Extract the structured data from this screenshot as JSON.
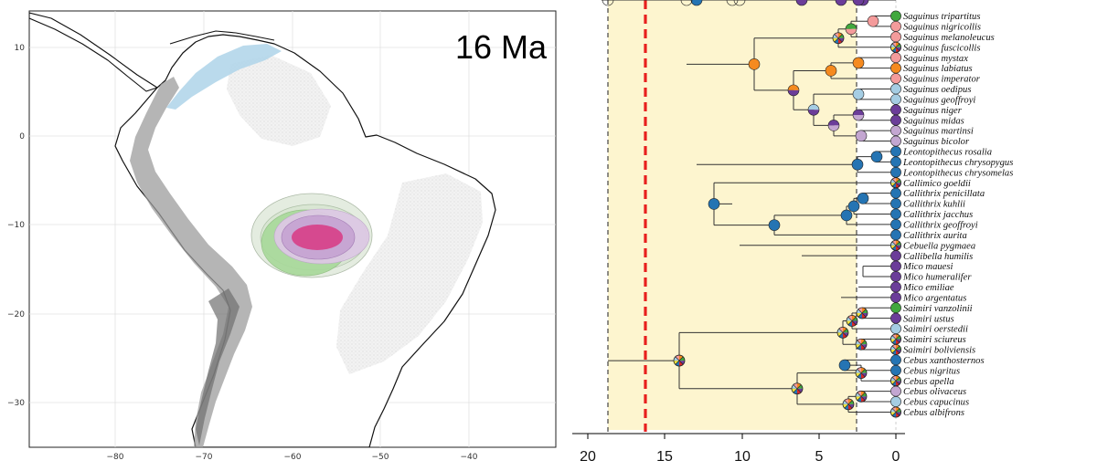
{
  "map": {
    "title": "16 Ma",
    "x_ticks": [
      "−80",
      "−70",
      "−60",
      "−50",
      "−40"
    ],
    "y_ticks": [
      "10",
      "0",
      "−10",
      "−20",
      "−30"
    ],
    "colors": {
      "land": "#ffffff",
      "coast": "#111111",
      "relief": "#9a9a9a",
      "shield": "#dadada",
      "caribbean": "#b3d6ea",
      "range_outer": "#e3ecdf",
      "range_green": "#a8d99a",
      "range_purple": "#c7a6d3",
      "range_core": "#d6498f"
    }
  },
  "tree": {
    "axis_ticks": [
      "20",
      "15",
      "10",
      "5",
      "0"
    ],
    "colors": {
      "band": "#fdf5cf",
      "event_line": "#e8201e",
      "orange": "#f58a1f",
      "blue": "#2574b3",
      "green": "#41a83e",
      "purple": "#6b3d99",
      "light_blue": "#a5cde3",
      "lavender": "#c3a6d1",
      "pink": "#f49b9b",
      "red": "#d7262a",
      "yellow": "#f2e43a",
      "dark": "#222222"
    },
    "taxa": [
      "Saguinus tripartitus",
      "Saguinus nigricollis",
      "Saguinus melanoleucus",
      "Saguinus fuscicollis",
      "Saguinus mystax",
      "Saguinus labiatus",
      "Saguinus imperator",
      "Saguinus oedipus",
      "Saguinus geoffroyi",
      "Saguinus niger",
      "Saguinus midas",
      "Saguinus martinsi",
      "Saguinus bicolor",
      "Leontopithecus rosalia",
      "Leontopithecus chrysopygus",
      "Leontopithecus chrysomelas",
      "Callimico goeldii",
      "Callithrix penicillata",
      "Callithrix kuhlii",
      "Callithrix jacchus",
      "Callithrix geoffroyi",
      "Callithrix aurita",
      "Cebuella pygmaea",
      "Callibella humilis",
      "Mico mauesi",
      "Mico humeralifer",
      "Mico emiliae",
      "Mico argentatus",
      "Saimiri vanzolinii",
      "Saimiri ustus",
      "Saimiri oerstedii",
      "Saimiri sciureus",
      "Saimiri boliviensis",
      "Cebus xanthosternos",
      "Cebus nigritus",
      "Cebus apella",
      "Cebus olivaceus",
      "Cebus capucinus",
      "Cebus albifrons"
    ]
  }
}
